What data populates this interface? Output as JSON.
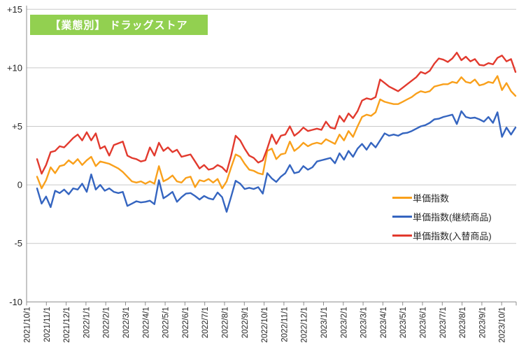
{
  "title": {
    "text": "【業態別】 ドラッグストア",
    "bg_color": "#92d050",
    "text_color": "#ffffff"
  },
  "chart_data": {
    "type": "line",
    "x_tick_labels": [
      "2021/10/1",
      "2021/11/1",
      "2021/12/1",
      "2022/1/1",
      "2022/2/1",
      "2022/3/1",
      "2022/4/1",
      "2022/5/1",
      "2022/6/1",
      "2022/7/1",
      "2022/8/1",
      "2022/9/1",
      "2022/10/1",
      "2022/11/1",
      "2022/12/1",
      "2023/1/1",
      "2023/2/1",
      "2023/3/1",
      "2023/4/1",
      "2023/5/1",
      "2023/6/1",
      "2023/7/1",
      "2023/8/1",
      "2023/9/1",
      "2023/10/1"
    ],
    "x_unit": "weekly",
    "ylim": [
      -10,
      15
    ],
    "grid": true,
    "legend_position": "right-middle",
    "y_ticks": [
      {
        "label": "+15",
        "value": 15
      },
      {
        "label": "+10",
        "value": 10
      },
      {
        "label": "+5",
        "value": 5
      },
      {
        "label": "0",
        "value": 0
      },
      {
        "label": "-5",
        "value": -5
      },
      {
        "label": "-10",
        "value": -10
      }
    ],
    "series": [
      {
        "name": "単価指数",
        "color": "#f9a01b",
        "values": [
          0.7,
          -0.3,
          0.4,
          1.5,
          1.0,
          1.6,
          1.7,
          2.1,
          1.8,
          2.2,
          1.7,
          2.1,
          2.4,
          1.6,
          2.0,
          1.9,
          1.8,
          1.6,
          1.4,
          1.1,
          0.7,
          0.3,
          0.2,
          0.3,
          0.1,
          0.3,
          0.1,
          1.6,
          0.3,
          0.5,
          0.8,
          0.3,
          0.2,
          0.6,
          0.7,
          -0.2,
          0.4,
          0.3,
          0.5,
          0.2,
          0.5,
          -0.3,
          0.3,
          1.5,
          2.6,
          2.4,
          1.8,
          1.3,
          1.2,
          1.0,
          0.9,
          2.9,
          3.1,
          2.2,
          2.6,
          2.7,
          3.7,
          2.9,
          3.2,
          3.6,
          3.3,
          3.5,
          3.6,
          3.5,
          3.9,
          3.7,
          3.5,
          4.3,
          3.8,
          4.6,
          4.1,
          5.0,
          5.8,
          6.0,
          5.9,
          6.2,
          7.3,
          7.1,
          7.0,
          6.9,
          6.9,
          7.1,
          7.3,
          7.5,
          7.8,
          8.0,
          7.9,
          8.0,
          8.4,
          8.5,
          8.6,
          8.6,
          8.8,
          8.7,
          9.2,
          8.8,
          8.7,
          9.0,
          8.5,
          8.6,
          8.8,
          8.7,
          9.3,
          8.1,
          8.7,
          8.0,
          7.6
        ]
      },
      {
        "name": "単価指数(継続商品)",
        "color": "#3565c0",
        "values": [
          -0.3,
          -1.6,
          -1.0,
          -1.9,
          -0.5,
          -0.7,
          -0.4,
          -0.8,
          -0.3,
          -0.4,
          0.1,
          -0.6,
          0.9,
          -0.4,
          0.0,
          -0.5,
          -0.3,
          -0.6,
          -0.7,
          -0.6,
          -1.8,
          -1.6,
          -1.4,
          -1.5,
          -1.45,
          -1.35,
          -1.65,
          0.4,
          -1.15,
          -0.9,
          -0.6,
          -1.45,
          -1.05,
          -0.75,
          -0.7,
          -0.95,
          -1.25,
          -0.95,
          -1.15,
          -1.25,
          -0.65,
          -1.05,
          -2.3,
          -1.0,
          0.35,
          0.1,
          -0.35,
          -0.25,
          -0.35,
          -0.2,
          -0.75,
          1.0,
          0.55,
          0.25,
          0.7,
          1.0,
          1.7,
          1.0,
          1.1,
          1.6,
          1.3,
          1.5,
          2.0,
          2.1,
          2.2,
          2.3,
          1.85,
          2.7,
          2.15,
          2.9,
          2.4,
          3.1,
          3.5,
          3.0,
          3.6,
          3.2,
          3.8,
          4.4,
          4.2,
          4.3,
          4.2,
          4.4,
          4.45,
          4.6,
          4.8,
          5.0,
          5.1,
          5.3,
          5.6,
          5.65,
          5.8,
          5.9,
          6.0,
          5.2,
          6.3,
          5.8,
          5.7,
          5.75,
          5.6,
          5.4,
          5.8,
          5.3,
          6.2,
          4.1,
          4.9,
          4.3,
          4.9
        ]
      },
      {
        "name": "単価指数(入替商品)",
        "color": "#e23a2e",
        "values": [
          2.2,
          0.95,
          1.7,
          2.8,
          2.9,
          3.3,
          3.2,
          3.6,
          4.0,
          4.3,
          3.8,
          4.5,
          3.8,
          4.4,
          3.1,
          3.3,
          2.5,
          3.4,
          3.55,
          3.7,
          2.5,
          2.3,
          2.2,
          2.0,
          2.1,
          3.2,
          2.5,
          3.6,
          2.9,
          3.2,
          2.8,
          3.0,
          2.4,
          2.5,
          2.6,
          2.0,
          1.4,
          1.7,
          1.3,
          1.4,
          1.7,
          1.5,
          1.1,
          2.5,
          4.2,
          3.8,
          3.1,
          2.5,
          2.3,
          1.9,
          2.1,
          3.1,
          4.3,
          3.5,
          4.2,
          4.3,
          5.0,
          4.2,
          4.5,
          4.9,
          4.6,
          4.7,
          4.8,
          4.7,
          5.4,
          4.9,
          4.8,
          5.9,
          5.4,
          6.1,
          5.7,
          6.3,
          7.2,
          7.4,
          7.3,
          7.5,
          9.0,
          8.7,
          8.4,
          8.2,
          8.0,
          8.3,
          8.6,
          8.9,
          9.2,
          9.65,
          9.5,
          9.75,
          10.35,
          10.8,
          10.7,
          10.5,
          10.8,
          11.3,
          10.65,
          10.95,
          10.55,
          10.75,
          10.25,
          10.2,
          10.4,
          10.3,
          10.85,
          11.05,
          10.55,
          10.75,
          9.65
        ]
      }
    ]
  }
}
